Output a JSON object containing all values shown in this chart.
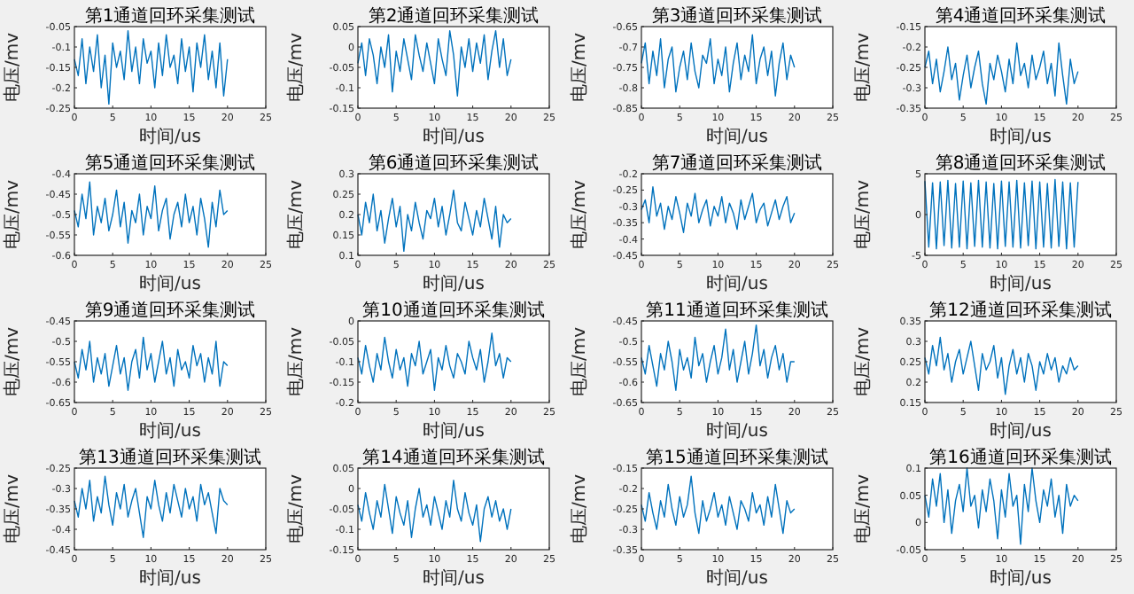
{
  "chart_data": [
    {
      "type": "line",
      "title": "第1通道回环采集测试",
      "xlabel": "时间/us",
      "ylabel": "电压/mv",
      "xlim": [
        0,
        25
      ],
      "xticks": [
        0,
        5,
        10,
        15,
        20,
        25
      ],
      "ylim": [
        -0.25,
        -0.05
      ],
      "yticks": [
        -0.25,
        -0.2,
        -0.15,
        -0.1,
        -0.05
      ],
      "x": [
        0,
        0.5,
        1,
        1.5,
        2,
        2.5,
        3,
        3.5,
        4,
        4.5,
        5,
        5.5,
        6,
        6.5,
        7,
        7.5,
        8,
        8.5,
        9,
        9.5,
        10,
        10.5,
        11,
        11.5,
        12,
        12.5,
        13,
        13.5,
        14,
        14.5,
        15,
        15.5,
        16,
        16.5,
        17,
        17.5,
        18,
        18.5,
        19,
        19.5,
        20
      ],
      "series": [
        {
          "color": "#0072bd",
          "values": [
            -0.13,
            -0.17,
            -0.08,
            -0.19,
            -0.1,
            -0.16,
            -0.07,
            -0.2,
            -0.12,
            -0.24,
            -0.09,
            -0.15,
            -0.11,
            -0.18,
            -0.06,
            -0.16,
            -0.1,
            -0.19,
            -0.08,
            -0.14,
            -0.11,
            -0.2,
            -0.09,
            -0.17,
            -0.07,
            -0.15,
            -0.12,
            -0.19,
            -0.08,
            -0.16,
            -0.1,
            -0.21,
            -0.09,
            -0.15,
            -0.07,
            -0.18,
            -0.11,
            -0.2,
            -0.09,
            -0.22,
            -0.13
          ]
        }
      ]
    },
    {
      "type": "line",
      "title": "第2通道回环采集测试",
      "xlabel": "时间/us",
      "ylabel": "电压/mv",
      "xlim": [
        0,
        25
      ],
      "xticks": [
        0,
        5,
        10,
        15,
        20,
        25
      ],
      "ylim": [
        -0.15,
        0.05
      ],
      "yticks": [
        -0.15,
        -0.1,
        -0.05,
        0,
        0.05
      ],
      "x": [
        0,
        0.5,
        1,
        1.5,
        2,
        2.5,
        3,
        3.5,
        4,
        4.5,
        5,
        5.5,
        6,
        6.5,
        7,
        7.5,
        8,
        8.5,
        9,
        9.5,
        10,
        10.5,
        11,
        11.5,
        12,
        12.5,
        13,
        13.5,
        14,
        14.5,
        15,
        15.5,
        16,
        16.5,
        17,
        17.5,
        18,
        18.5,
        19,
        19.5,
        20
      ],
      "series": [
        {
          "color": "#0072bd",
          "values": [
            -0.04,
            0.01,
            -0.07,
            0.02,
            -0.02,
            -0.09,
            0.0,
            -0.05,
            0.03,
            -0.11,
            -0.01,
            -0.06,
            0.02,
            -0.03,
            -0.08,
            0.03,
            -0.02,
            -0.06,
            0.01,
            -0.04,
            -0.09,
            0.02,
            -0.03,
            -0.07,
            0.04,
            -0.02,
            -0.12,
            0.0,
            -0.05,
            0.02,
            -0.06,
            0.01,
            -0.04,
            0.03,
            -0.08,
            -0.01,
            0.04,
            -0.05,
            0.02,
            -0.07,
            -0.03
          ]
        }
      ]
    },
    {
      "type": "line",
      "title": "第3通道回环采集测试",
      "xlabel": "时间/us",
      "ylabel": "电压/mv",
      "xlim": [
        0,
        25
      ],
      "xticks": [
        0,
        5,
        10,
        15,
        20,
        25
      ],
      "ylim": [
        -0.85,
        -0.65
      ],
      "yticks": [
        -0.85,
        -0.8,
        -0.75,
        -0.7,
        -0.65
      ],
      "x": [
        0,
        0.5,
        1,
        1.5,
        2,
        2.5,
        3,
        3.5,
        4,
        4.5,
        5,
        5.5,
        6,
        6.5,
        7,
        7.5,
        8,
        8.5,
        9,
        9.5,
        10,
        10.5,
        11,
        11.5,
        12,
        12.5,
        13,
        13.5,
        14,
        14.5,
        15,
        15.5,
        16,
        16.5,
        17,
        17.5,
        18,
        18.5,
        19,
        19.5,
        20
      ],
      "series": [
        {
          "color": "#0072bd",
          "values": [
            -0.74,
            -0.69,
            -0.79,
            -0.71,
            -0.77,
            -0.68,
            -0.8,
            -0.73,
            -0.7,
            -0.81,
            -0.75,
            -0.71,
            -0.78,
            -0.69,
            -0.76,
            -0.8,
            -0.72,
            -0.74,
            -0.68,
            -0.79,
            -0.73,
            -0.77,
            -0.7,
            -0.81,
            -0.74,
            -0.69,
            -0.78,
            -0.72,
            -0.76,
            -0.67,
            -0.79,
            -0.73,
            -0.7,
            -0.77,
            -0.71,
            -0.82,
            -0.74,
            -0.69,
            -0.78,
            -0.72,
            -0.75
          ]
        }
      ]
    },
    {
      "type": "line",
      "title": "第4通道回环采集测试",
      "xlabel": "时间/us",
      "ylabel": "电压/mv",
      "xlim": [
        0,
        25
      ],
      "xticks": [
        0,
        5,
        10,
        15,
        20,
        25
      ],
      "ylim": [
        -0.35,
        -0.15
      ],
      "yticks": [
        -0.35,
        -0.3,
        -0.25,
        -0.2,
        -0.15
      ],
      "x": [
        0,
        0.5,
        1,
        1.5,
        2,
        2.5,
        3,
        3.5,
        4,
        4.5,
        5,
        5.5,
        6,
        6.5,
        7,
        7.5,
        8,
        8.5,
        9,
        9.5,
        10,
        10.5,
        11,
        11.5,
        12,
        12.5,
        13,
        13.5,
        14,
        14.5,
        15,
        15.5,
        16,
        16.5,
        17,
        17.5,
        18,
        18.5,
        19,
        19.5,
        20
      ],
      "series": [
        {
          "color": "#0072bd",
          "values": [
            -0.25,
            -0.21,
            -0.29,
            -0.23,
            -0.31,
            -0.26,
            -0.2,
            -0.28,
            -0.24,
            -0.33,
            -0.27,
            -0.22,
            -0.3,
            -0.25,
            -0.21,
            -0.29,
            -0.34,
            -0.24,
            -0.28,
            -0.22,
            -0.26,
            -0.31,
            -0.23,
            -0.29,
            -0.19,
            -0.27,
            -0.24,
            -0.3,
            -0.22,
            -0.28,
            -0.25,
            -0.21,
            -0.29,
            -0.24,
            -0.32,
            -0.19,
            -0.27,
            -0.34,
            -0.23,
            -0.29,
            -0.26
          ]
        }
      ]
    },
    {
      "type": "line",
      "title": "第5通道回环采集测试",
      "xlabel": "时间/us",
      "ylabel": "电压/mv",
      "xlim": [
        0,
        25
      ],
      "xticks": [
        0,
        5,
        10,
        15,
        20,
        25
      ],
      "ylim": [
        -0.6,
        -0.4
      ],
      "yticks": [
        -0.6,
        -0.55,
        -0.5,
        -0.45,
        -0.4
      ],
      "x": [
        0,
        0.5,
        1,
        1.5,
        2,
        2.5,
        3,
        3.5,
        4,
        4.5,
        5,
        5.5,
        6,
        6.5,
        7,
        7.5,
        8,
        8.5,
        9,
        9.5,
        10,
        10.5,
        11,
        11.5,
        12,
        12.5,
        13,
        13.5,
        14,
        14.5,
        15,
        15.5,
        16,
        16.5,
        17,
        17.5,
        18,
        18.5,
        19,
        19.5,
        20
      ],
      "series": [
        {
          "color": "#0072bd",
          "values": [
            -0.49,
            -0.53,
            -0.45,
            -0.51,
            -0.42,
            -0.55,
            -0.48,
            -0.52,
            -0.46,
            -0.54,
            -0.5,
            -0.44,
            -0.53,
            -0.47,
            -0.57,
            -0.49,
            -0.52,
            -0.45,
            -0.55,
            -0.48,
            -0.51,
            -0.43,
            -0.54,
            -0.49,
            -0.46,
            -0.56,
            -0.5,
            -0.47,
            -0.53,
            -0.45,
            -0.52,
            -0.48,
            -0.55,
            -0.46,
            -0.51,
            -0.58,
            -0.47,
            -0.53,
            -0.44,
            -0.5,
            -0.49
          ]
        }
      ]
    },
    {
      "type": "line",
      "title": "第6通道回环采集测试",
      "xlabel": "时间/us",
      "ylabel": "电压/mv",
      "xlim": [
        0,
        25
      ],
      "xticks": [
        0,
        5,
        10,
        15,
        20,
        25
      ],
      "ylim": [
        0.1,
        0.3
      ],
      "yticks": [
        0.1,
        0.15,
        0.2,
        0.25,
        0.3
      ],
      "x": [
        0,
        0.5,
        1,
        1.5,
        2,
        2.5,
        3,
        3.5,
        4,
        4.5,
        5,
        5.5,
        6,
        6.5,
        7,
        7.5,
        8,
        8.5,
        9,
        9.5,
        10,
        10.5,
        11,
        11.5,
        12,
        12.5,
        13,
        13.5,
        14,
        14.5,
        15,
        15.5,
        16,
        16.5,
        17,
        17.5,
        18,
        18.5,
        19,
        19.5,
        20
      ],
      "series": [
        {
          "color": "#0072bd",
          "values": [
            0.2,
            0.15,
            0.23,
            0.18,
            0.25,
            0.16,
            0.21,
            0.13,
            0.19,
            0.24,
            0.17,
            0.22,
            0.11,
            0.2,
            0.16,
            0.23,
            0.18,
            0.14,
            0.21,
            0.19,
            0.24,
            0.17,
            0.22,
            0.15,
            0.2,
            0.26,
            0.18,
            0.16,
            0.23,
            0.19,
            0.15,
            0.21,
            0.17,
            0.24,
            0.19,
            0.14,
            0.22,
            0.12,
            0.2,
            0.18,
            0.19
          ]
        }
      ]
    },
    {
      "type": "line",
      "title": "第7通道回环采集测试",
      "xlabel": "时间/us",
      "ylabel": "电压/mv",
      "xlim": [
        0,
        25
      ],
      "xticks": [
        0,
        5,
        10,
        15,
        20,
        25
      ],
      "ylim": [
        -0.45,
        -0.2
      ],
      "yticks": [
        -0.45,
        -0.4,
        -0.35,
        -0.3,
        -0.25,
        -0.2
      ],
      "x": [
        0,
        0.5,
        1,
        1.5,
        2,
        2.5,
        3,
        3.5,
        4,
        4.5,
        5,
        5.5,
        6,
        6.5,
        7,
        7.5,
        8,
        8.5,
        9,
        9.5,
        10,
        10.5,
        11,
        11.5,
        12,
        12.5,
        13,
        13.5,
        14,
        14.5,
        15,
        15.5,
        16,
        16.5,
        17,
        17.5,
        18,
        18.5,
        19,
        19.5,
        20
      ],
      "series": [
        {
          "color": "#0072bd",
          "values": [
            -0.31,
            -0.28,
            -0.35,
            -0.24,
            -0.33,
            -0.29,
            -0.37,
            -0.3,
            -0.34,
            -0.27,
            -0.32,
            -0.38,
            -0.29,
            -0.33,
            -0.26,
            -0.35,
            -0.31,
            -0.28,
            -0.36,
            -0.3,
            -0.33,
            -0.27,
            -0.35,
            -0.29,
            -0.32,
            -0.37,
            -0.28,
            -0.34,
            -0.3,
            -0.26,
            -0.35,
            -0.31,
            -0.29,
            -0.36,
            -0.32,
            -0.28,
            -0.34,
            -0.3,
            -0.27,
            -0.35,
            -0.32
          ]
        }
      ]
    },
    {
      "type": "line",
      "title": "第8通道回环采集测试",
      "xlabel": "时间/us",
      "ylabel": "电压/mv",
      "xlim": [
        0,
        25
      ],
      "xticks": [
        0,
        5,
        10,
        15,
        20,
        25
      ],
      "ylim": [
        -5,
        5
      ],
      "yticks": [
        -5,
        0,
        5
      ],
      "x": [
        0,
        0.5,
        1,
        1.5,
        2,
        2.5,
        3,
        3.5,
        4,
        4.5,
        5,
        5.5,
        6,
        6.5,
        7,
        7.5,
        8,
        8.5,
        9,
        9.5,
        10,
        10.5,
        11,
        11.5,
        12,
        12.5,
        13,
        13.5,
        14,
        14.5,
        15,
        15.5,
        16,
        16.5,
        17,
        17.5,
        18,
        18.5,
        19,
        19.5,
        20
      ],
      "series": [
        {
          "color": "#0072bd",
          "values": [
            4.1,
            -4.0,
            3.9,
            -4.2,
            4.0,
            -3.8,
            4.2,
            -4.1,
            3.8,
            -4.0,
            4.1,
            -4.2,
            3.9,
            -3.9,
            4.2,
            -4.0,
            4.0,
            -4.1,
            3.8,
            -4.2,
            4.1,
            -3.9,
            4.0,
            -4.0,
            4.2,
            -4.1,
            3.9,
            -3.8,
            4.1,
            -4.2,
            4.0,
            -4.0,
            3.8,
            -4.1,
            4.3,
            -3.9,
            4.0,
            -4.2,
            3.9,
            -4.0,
            4.0
          ]
        }
      ]
    },
    {
      "type": "line",
      "title": "第9通道回环采集测试",
      "xlabel": "时间/us",
      "ylabel": "电压/mv",
      "xlim": [
        0,
        25
      ],
      "xticks": [
        0,
        5,
        10,
        15,
        20,
        25
      ],
      "ylim": [
        -0.65,
        -0.45
      ],
      "yticks": [
        -0.65,
        -0.6,
        -0.55,
        -0.5,
        -0.45
      ],
      "x": [
        0,
        0.5,
        1,
        1.5,
        2,
        2.5,
        3,
        3.5,
        4,
        4.5,
        5,
        5.5,
        6,
        6.5,
        7,
        7.5,
        8,
        8.5,
        9,
        9.5,
        10,
        10.5,
        11,
        11.5,
        12,
        12.5,
        13,
        13.5,
        14,
        14.5,
        15,
        15.5,
        16,
        16.5,
        17,
        17.5,
        18,
        18.5,
        19,
        19.5,
        20
      ],
      "series": [
        {
          "color": "#0072bd",
          "values": [
            -0.55,
            -0.59,
            -0.52,
            -0.57,
            -0.5,
            -0.6,
            -0.54,
            -0.58,
            -0.53,
            -0.61,
            -0.56,
            -0.51,
            -0.58,
            -0.54,
            -0.62,
            -0.55,
            -0.52,
            -0.59,
            -0.49,
            -0.57,
            -0.53,
            -0.6,
            -0.55,
            -0.5,
            -0.58,
            -0.54,
            -0.61,
            -0.52,
            -0.57,
            -0.55,
            -0.59,
            -0.51,
            -0.56,
            -0.53,
            -0.6,
            -0.54,
            -0.58,
            -0.5,
            -0.61,
            -0.55,
            -0.56
          ]
        }
      ]
    },
    {
      "type": "line",
      "title": "第10通道回环采集测试",
      "xlabel": "时间/us",
      "ylabel": "电压/mv",
      "xlim": [
        0,
        25
      ],
      "xticks": [
        0,
        5,
        10,
        15,
        20,
        25
      ],
      "ylim": [
        -0.2,
        0
      ],
      "yticks": [
        -0.2,
        -0.15,
        -0.1,
        -0.05,
        0
      ],
      "x": [
        0,
        0.5,
        1,
        1.5,
        2,
        2.5,
        3,
        3.5,
        4,
        4.5,
        5,
        5.5,
        6,
        6.5,
        7,
        7.5,
        8,
        8.5,
        9,
        9.5,
        10,
        10.5,
        11,
        11.5,
        12,
        12.5,
        13,
        13.5,
        14,
        14.5,
        15,
        15.5,
        16,
        16.5,
        17,
        17.5,
        18,
        18.5,
        19,
        19.5,
        20
      ],
      "series": [
        {
          "color": "#0072bd",
          "values": [
            -0.09,
            -0.13,
            -0.06,
            -0.11,
            -0.15,
            -0.08,
            -0.12,
            -0.04,
            -0.1,
            -0.14,
            -0.07,
            -0.12,
            -0.09,
            -0.16,
            -0.08,
            -0.11,
            -0.05,
            -0.13,
            -0.1,
            -0.07,
            -0.17,
            -0.09,
            -0.12,
            -0.06,
            -0.11,
            -0.14,
            -0.08,
            -0.1,
            -0.13,
            -0.05,
            -0.09,
            -0.12,
            -0.07,
            -0.15,
            -0.1,
            -0.03,
            -0.11,
            -0.08,
            -0.14,
            -0.09,
            -0.1
          ]
        }
      ]
    },
    {
      "type": "line",
      "title": "第11通道回环采集测试",
      "xlabel": "时间/us",
      "ylabel": "电压/mv",
      "xlim": [
        0,
        25
      ],
      "xticks": [
        0,
        5,
        10,
        15,
        20,
        25
      ],
      "ylim": [
        -0.65,
        -0.45
      ],
      "yticks": [
        -0.65,
        -0.6,
        -0.55,
        -0.5,
        -0.45
      ],
      "x": [
        0,
        0.5,
        1,
        1.5,
        2,
        2.5,
        3,
        3.5,
        4,
        4.5,
        5,
        5.5,
        6,
        6.5,
        7,
        7.5,
        8,
        8.5,
        9,
        9.5,
        10,
        10.5,
        11,
        11.5,
        12,
        12.5,
        13,
        13.5,
        14,
        14.5,
        15,
        15.5,
        16,
        16.5,
        17,
        17.5,
        18,
        18.5,
        19,
        19.5,
        20
      ],
      "series": [
        {
          "color": "#0072bd",
          "values": [
            -0.54,
            -0.58,
            -0.51,
            -0.56,
            -0.61,
            -0.53,
            -0.57,
            -0.5,
            -0.55,
            -0.62,
            -0.52,
            -0.57,
            -0.54,
            -0.59,
            -0.49,
            -0.56,
            -0.53,
            -0.6,
            -0.55,
            -0.51,
            -0.58,
            -0.54,
            -0.47,
            -0.57,
            -0.52,
            -0.6,
            -0.55,
            -0.5,
            -0.58,
            -0.53,
            -0.46,
            -0.56,
            -0.52,
            -0.59,
            -0.54,
            -0.51,
            -0.57,
            -0.53,
            -0.6,
            -0.55,
            -0.55
          ]
        }
      ]
    },
    {
      "type": "line",
      "title": "第12通道回环采集测试",
      "xlabel": "时间/us",
      "ylabel": "电压/mv",
      "xlim": [
        0,
        25
      ],
      "xticks": [
        0,
        5,
        10,
        15,
        20,
        25
      ],
      "ylim": [
        0.15,
        0.35
      ],
      "yticks": [
        0.15,
        0.2,
        0.25,
        0.3,
        0.35
      ],
      "x": [
        0,
        0.5,
        1,
        1.5,
        2,
        2.5,
        3,
        3.5,
        4,
        4.5,
        5,
        5.5,
        6,
        6.5,
        7,
        7.5,
        8,
        8.5,
        9,
        9.5,
        10,
        10.5,
        11,
        11.5,
        12,
        12.5,
        13,
        13.5,
        14,
        14.5,
        15,
        15.5,
        16,
        16.5,
        17,
        17.5,
        18,
        18.5,
        19,
        19.5,
        20
      ],
      "series": [
        {
          "color": "#0072bd",
          "values": [
            0.26,
            0.22,
            0.29,
            0.24,
            0.31,
            0.23,
            0.27,
            0.2,
            0.25,
            0.28,
            0.22,
            0.26,
            0.3,
            0.24,
            0.18,
            0.27,
            0.23,
            0.25,
            0.29,
            0.21,
            0.26,
            0.17,
            0.24,
            0.28,
            0.22,
            0.26,
            0.2,
            0.27,
            0.24,
            0.18,
            0.25,
            0.22,
            0.27,
            0.23,
            0.26,
            0.2,
            0.24,
            0.22,
            0.26,
            0.23,
            0.24
          ]
        }
      ]
    },
    {
      "type": "line",
      "title": "第13通道回环采集测试",
      "xlabel": "时间/us",
      "ylabel": "电压/mv",
      "xlim": [
        0,
        25
      ],
      "xticks": [
        0,
        5,
        10,
        15,
        20,
        25
      ],
      "ylim": [
        -0.45,
        -0.25
      ],
      "yticks": [
        -0.45,
        -0.4,
        -0.35,
        -0.3,
        -0.25
      ],
      "x": [
        0,
        0.5,
        1,
        1.5,
        2,
        2.5,
        3,
        3.5,
        4,
        4.5,
        5,
        5.5,
        6,
        6.5,
        7,
        7.5,
        8,
        8.5,
        9,
        9.5,
        10,
        10.5,
        11,
        11.5,
        12,
        12.5,
        13,
        13.5,
        14,
        14.5,
        15,
        15.5,
        16,
        16.5,
        17,
        17.5,
        18,
        18.5,
        19,
        19.5,
        20
      ],
      "series": [
        {
          "color": "#0072bd",
          "values": [
            -0.33,
            -0.37,
            -0.3,
            -0.35,
            -0.28,
            -0.38,
            -0.32,
            -0.36,
            -0.27,
            -0.34,
            -0.39,
            -0.31,
            -0.35,
            -0.29,
            -0.37,
            -0.33,
            -0.3,
            -0.36,
            -0.42,
            -0.32,
            -0.35,
            -0.28,
            -0.34,
            -0.38,
            -0.31,
            -0.36,
            -0.29,
            -0.33,
            -0.37,
            -0.3,
            -0.35,
            -0.32,
            -0.38,
            -0.29,
            -0.34,
            -0.31,
            -0.36,
            -0.41,
            -0.3,
            -0.33,
            -0.34
          ]
        }
      ]
    },
    {
      "type": "line",
      "title": "第14通道回环采集测试",
      "xlabel": "时间/us",
      "ylabel": "电压/mv",
      "xlim": [
        0,
        25
      ],
      "xticks": [
        0,
        5,
        10,
        15,
        20,
        25
      ],
      "ylim": [
        -0.15,
        0.05
      ],
      "yticks": [
        -0.15,
        -0.1,
        -0.05,
        0,
        0.05
      ],
      "x": [
        0,
        0.5,
        1,
        1.5,
        2,
        2.5,
        3,
        3.5,
        4,
        4.5,
        5,
        5.5,
        6,
        6.5,
        7,
        7.5,
        8,
        8.5,
        9,
        9.5,
        10,
        10.5,
        11,
        11.5,
        12,
        12.5,
        13,
        13.5,
        14,
        14.5,
        15,
        15.5,
        16,
        16.5,
        17,
        17.5,
        18,
        18.5,
        19,
        19.5,
        20
      ],
      "series": [
        {
          "color": "#0072bd",
          "values": [
            -0.04,
            -0.08,
            -0.01,
            -0.06,
            -0.1,
            -0.03,
            -0.07,
            0.01,
            -0.05,
            -0.11,
            -0.02,
            -0.06,
            -0.09,
            -0.03,
            -0.12,
            -0.05,
            0.0,
            -0.07,
            -0.04,
            -0.09,
            -0.02,
            -0.06,
            -0.1,
            -0.03,
            -0.07,
            0.02,
            -0.05,
            -0.08,
            -0.01,
            -0.06,
            -0.09,
            -0.04,
            -0.13,
            -0.05,
            -0.02,
            -0.07,
            -0.03,
            -0.08,
            -0.05,
            -0.1,
            -0.05
          ]
        }
      ]
    },
    {
      "type": "line",
      "title": "第15通道回环采集测试",
      "xlabel": "时间/us",
      "ylabel": "电压/mv",
      "xlim": [
        0,
        25
      ],
      "xticks": [
        0,
        5,
        10,
        15,
        20,
        25
      ],
      "ylim": [
        -0.35,
        -0.15
      ],
      "yticks": [
        -0.35,
        -0.3,
        -0.25,
        -0.2,
        -0.15
      ],
      "x": [
        0,
        0.5,
        1,
        1.5,
        2,
        2.5,
        3,
        3.5,
        4,
        4.5,
        5,
        5.5,
        6,
        6.5,
        7,
        7.5,
        8,
        8.5,
        9,
        9.5,
        10,
        10.5,
        11,
        11.5,
        12,
        12.5,
        13,
        13.5,
        14,
        14.5,
        15,
        15.5,
        16,
        16.5,
        17,
        17.5,
        18,
        18.5,
        19,
        19.5,
        20
      ],
      "series": [
        {
          "color": "#0072bd",
          "values": [
            -0.24,
            -0.28,
            -0.21,
            -0.26,
            -0.3,
            -0.23,
            -0.27,
            -0.19,
            -0.25,
            -0.29,
            -0.22,
            -0.27,
            -0.24,
            -0.17,
            -0.26,
            -0.31,
            -0.23,
            -0.28,
            -0.25,
            -0.21,
            -0.27,
            -0.24,
            -0.29,
            -0.22,
            -0.26,
            -0.3,
            -0.23,
            -0.25,
            -0.28,
            -0.21,
            -0.26,
            -0.24,
            -0.29,
            -0.22,
            -0.27,
            -0.19,
            -0.25,
            -0.31,
            -0.23,
            -0.26,
            -0.25
          ]
        }
      ]
    },
    {
      "type": "line",
      "title": "第16通道回环采集测试",
      "xlabel": "时间/us",
      "ylabel": "电压/mv",
      "xlim": [
        0,
        25
      ],
      "xticks": [
        0,
        5,
        10,
        15,
        20,
        25
      ],
      "ylim": [
        -0.05,
        0.1
      ],
      "yticks": [
        -0.05,
        0,
        0.05,
        0.1
      ],
      "x": [
        0,
        0.5,
        1,
        1.5,
        2,
        2.5,
        3,
        3.5,
        4,
        4.5,
        5,
        5.5,
        6,
        6.5,
        7,
        7.5,
        8,
        8.5,
        9,
        9.5,
        10,
        10.5,
        11,
        11.5,
        12,
        12.5,
        13,
        13.5,
        14,
        14.5,
        15,
        15.5,
        16,
        16.5,
        17,
        17.5,
        18,
        18.5,
        19,
        19.5,
        20
      ],
      "series": [
        {
          "color": "#0072bd",
          "values": [
            0.05,
            0.01,
            0.08,
            0.03,
            0.09,
            0.0,
            0.06,
            -0.02,
            0.04,
            0.07,
            0.02,
            0.1,
            0.03,
            0.05,
            -0.01,
            0.06,
            0.02,
            0.08,
            0.04,
            -0.03,
            0.06,
            0.01,
            0.09,
            0.03,
            0.05,
            -0.04,
            0.07,
            0.02,
            0.1,
            0.04,
            0.0,
            0.06,
            0.03,
            0.08,
            0.01,
            0.05,
            -0.02,
            0.07,
            0.03,
            0.05,
            0.04
          ]
        }
      ]
    }
  ]
}
